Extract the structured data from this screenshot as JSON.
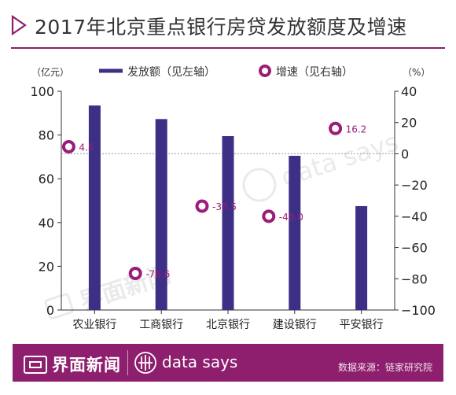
{
  "title": "2017年北京重点银行房贷发放额度及增速",
  "colors": {
    "accent": "#8e1e6e",
    "bar": "#3d2f85",
    "marker": "#9b1c79",
    "text": "#222222"
  },
  "legend": {
    "bar_label": "发放额（见左轴）",
    "dot_label": "增速（见右轴）",
    "left_unit": "（亿元）",
    "right_unit": "（%）"
  },
  "chart_data": {
    "type": "bar",
    "categories": [
      "农业银行",
      "工商银行",
      "北京银行",
      "建设银行",
      "平安银行"
    ],
    "series": [
      {
        "name": "发放额（见左轴）",
        "type": "bar",
        "axis": "left",
        "values": [
          93.5,
          87.3,
          79.5,
          70.5,
          47.5
        ]
      },
      {
        "name": "增速（见右轴）",
        "type": "scatter",
        "axis": "right",
        "values": [
          4.5,
          -76.6,
          -33.5,
          -40.0,
          16.2
        ],
        "labels": [
          "4.5",
          "-76.6",
          "-33.5",
          "-40.0",
          "16.2"
        ]
      }
    ],
    "ylim": [
      0,
      100
    ],
    "y2lim": [
      -100,
      40
    ],
    "yticks": [
      "0",
      "20",
      "40",
      "60",
      "80",
      "100"
    ],
    "y2ticks": [
      "−100",
      "−80",
      "−60",
      "−40",
      "−20",
      "0",
      "20",
      "40"
    ],
    "zero_line_right_axis": true,
    "grid": false
  },
  "footer": {
    "brand": "界面新闻",
    "datasays": "data says",
    "source": "数据来源：链家研究院",
    "watermark_brand": "界面新闻",
    "watermark_ds": "data says"
  }
}
